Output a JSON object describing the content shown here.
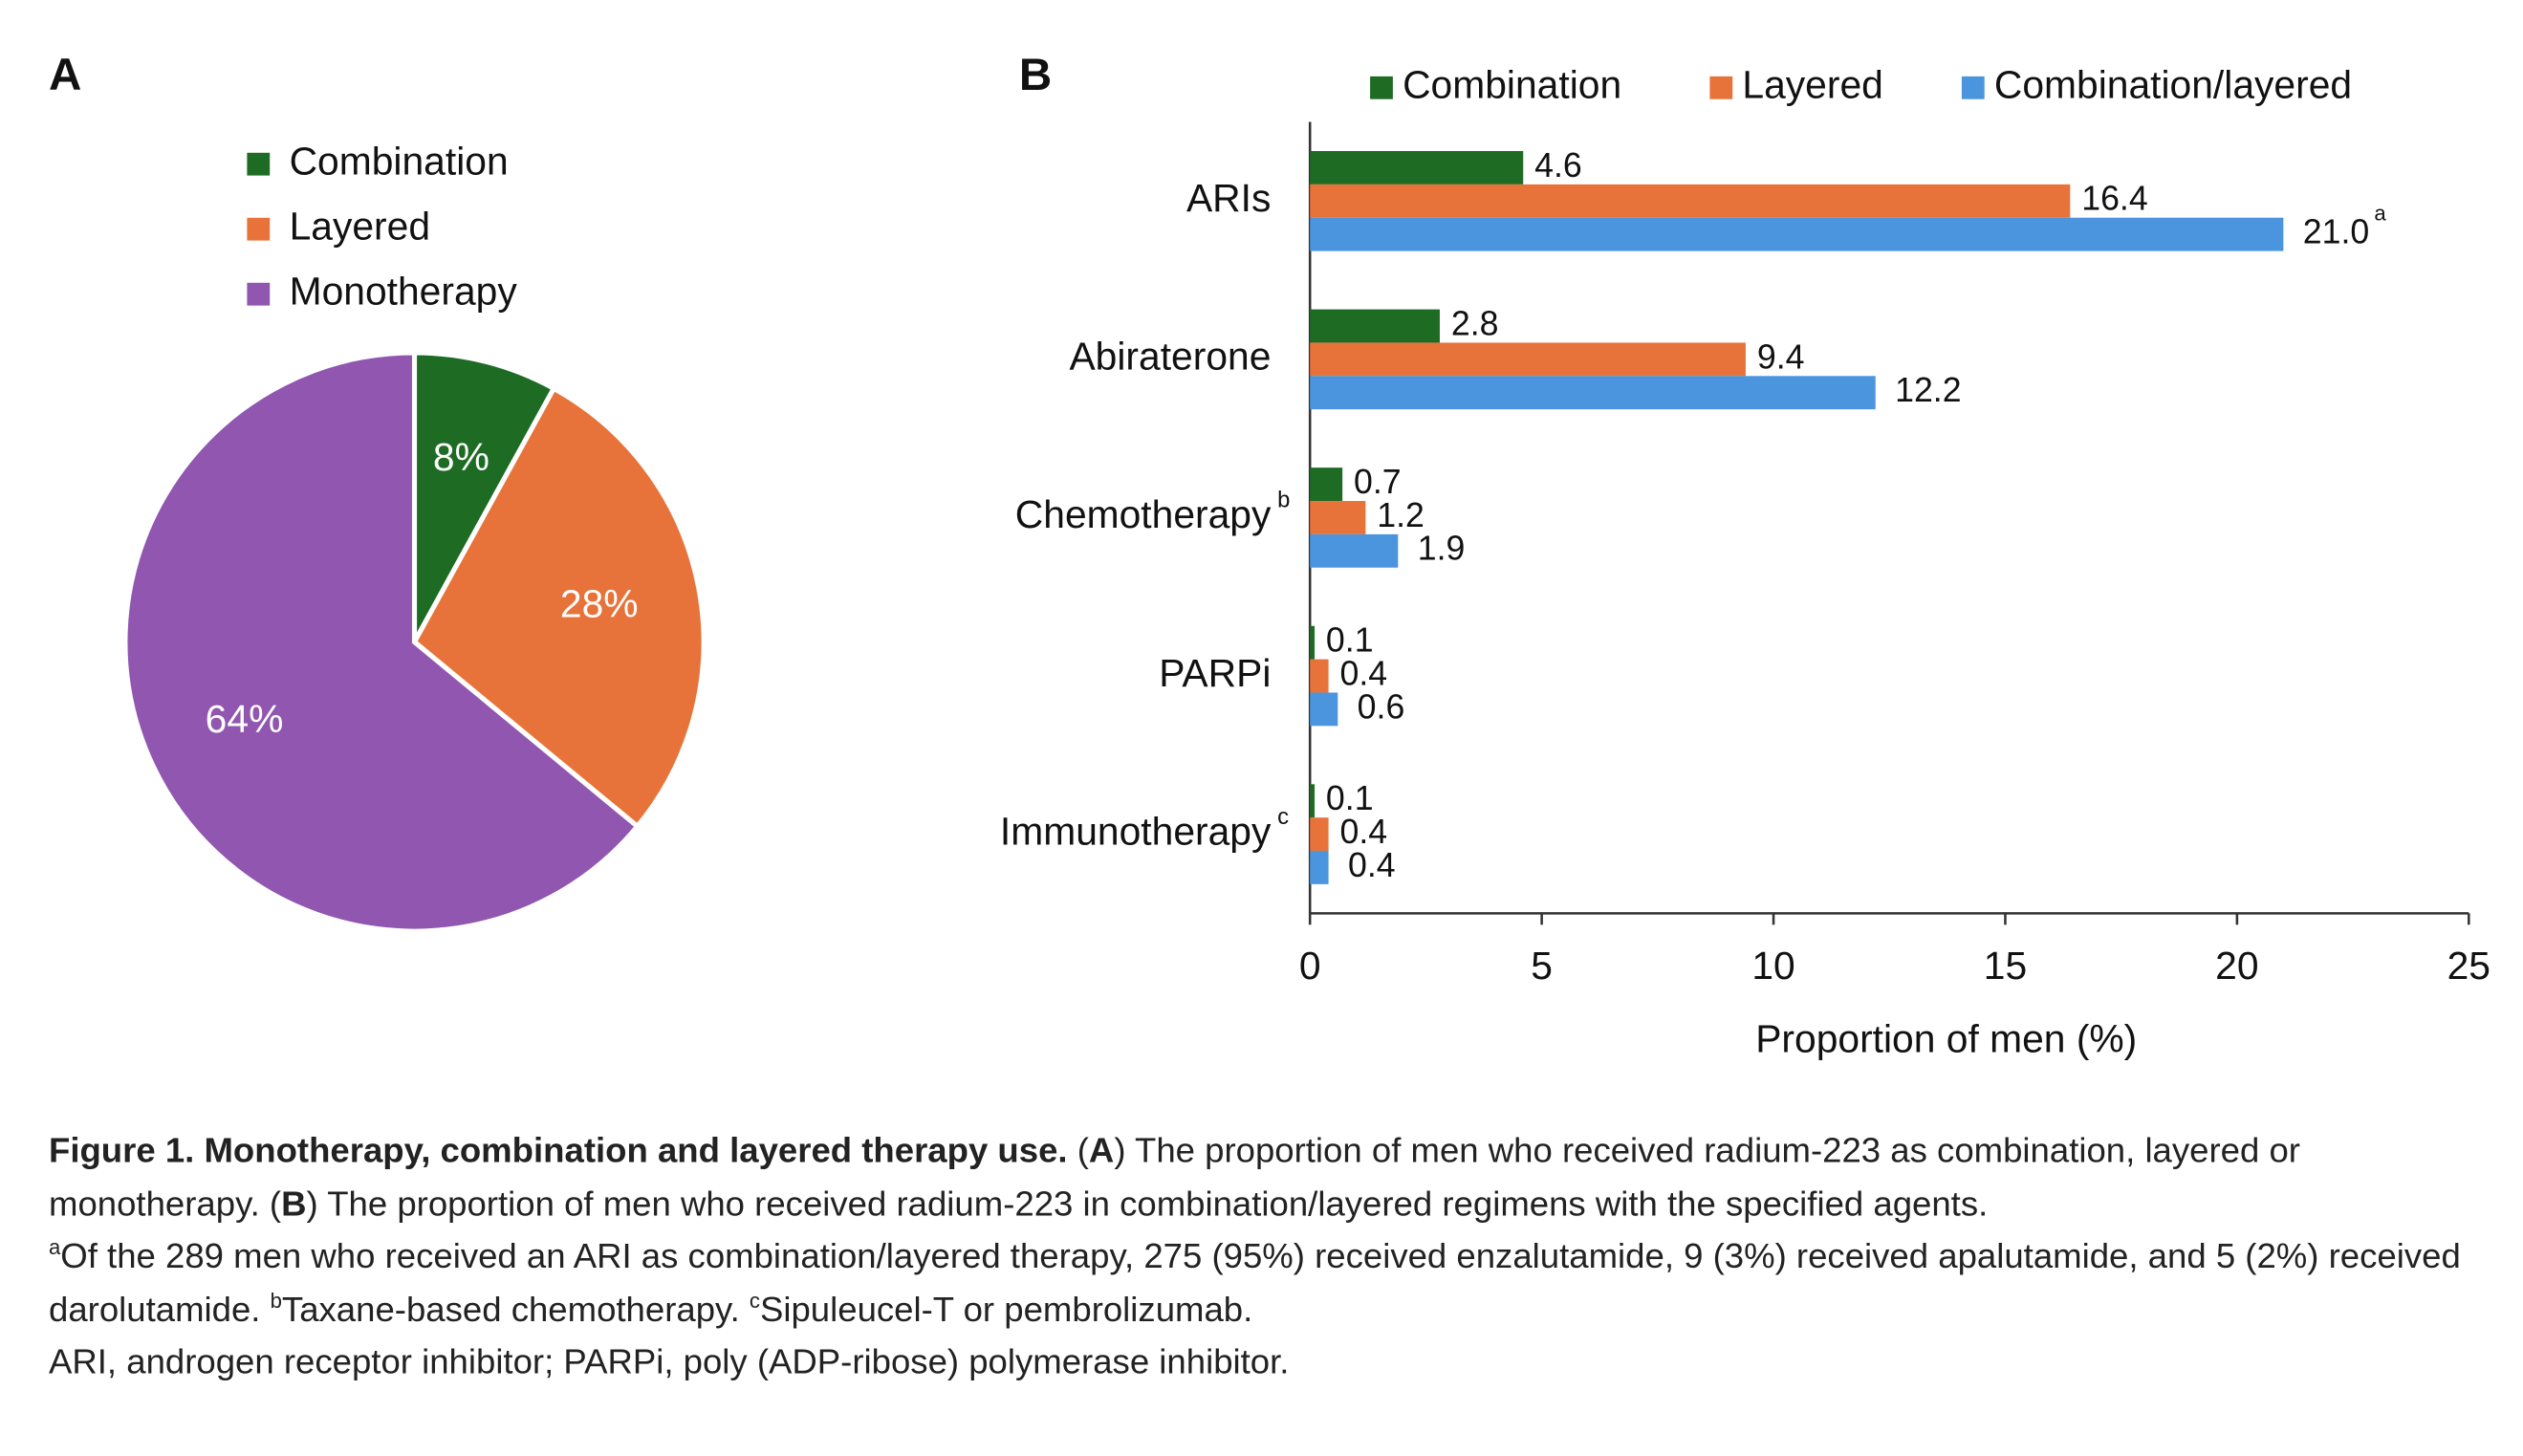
{
  "chart_data": [
    {
      "type": "pie",
      "panel_label": "A",
      "categories": [
        "Combination",
        "Layered",
        "Monotherapy"
      ],
      "values": [
        8,
        28,
        64
      ],
      "value_labels": [
        "8%",
        "28%",
        "64%"
      ],
      "colors": [
        "#1e6b24",
        "#e8733a",
        "#9056b0"
      ],
      "legend": "top"
    },
    {
      "type": "barh",
      "panel_label": "B",
      "categories": [
        "ARIs",
        "Abiraterone",
        "Chemotherapy",
        "PARPi",
        "Immunotherapy"
      ],
      "category_notes": [
        null,
        null,
        "b",
        null,
        "c"
      ],
      "series": [
        {
          "name": "Combination",
          "color": "#1e6b24",
          "values": [
            4.6,
            2.8,
            0.7,
            0.1,
            0.1
          ]
        },
        {
          "name": "Layered",
          "color": "#e8733a",
          "values": [
            16.4,
            9.4,
            1.2,
            0.4,
            0.4
          ]
        },
        {
          "name": "Combination/layered",
          "color": "#4a95dd",
          "values": [
            21,
            12.2,
            1.9,
            0.6,
            0.4
          ],
          "value_labels": [
            "21.0",
            "12.2",
            "1.9",
            "0.6",
            "0.4"
          ],
          "value_notes": [
            "a",
            null,
            null,
            null,
            null
          ]
        }
      ],
      "xlabel": "Proportion of men (%)",
      "xlim": [
        0,
        25
      ],
      "xticks": [
        0,
        5,
        10,
        15,
        20,
        25
      ],
      "legend": "top"
    }
  ],
  "caption": {
    "paragraph": [
      {
        "text": "Figure 1. Monotherapy, combination and layered therapy use.",
        "bold": true
      },
      {
        "text": " ("
      },
      {
        "text": "A",
        "bold": true
      },
      {
        "text": ") The proportion of men who received radium-223 as combination, layered or monotherapy. ("
      },
      {
        "text": "B",
        "bold": true
      },
      {
        "text": ") The proportion of men who received radium-223 in combination/layered regimens with the specified agents."
      }
    ],
    "footnotes": [
      {
        "mark": "a",
        "text": "Of the 289 men who received an ARI as combination/layered therapy, 275 (95%) received enzalutamide, 9 (3%) received apalutamide, and 5 (2%) received darolutamide. "
      },
      {
        "mark": "b",
        "text": "Taxane-based chemotherapy. "
      },
      {
        "mark": "c",
        "text": "Sipuleucel-T or pembrolizumab."
      }
    ],
    "abbreviations": "ARI, androgen receptor inhibitor; PARPi, poly (ADP-ribose) polymerase inhibitor."
  }
}
